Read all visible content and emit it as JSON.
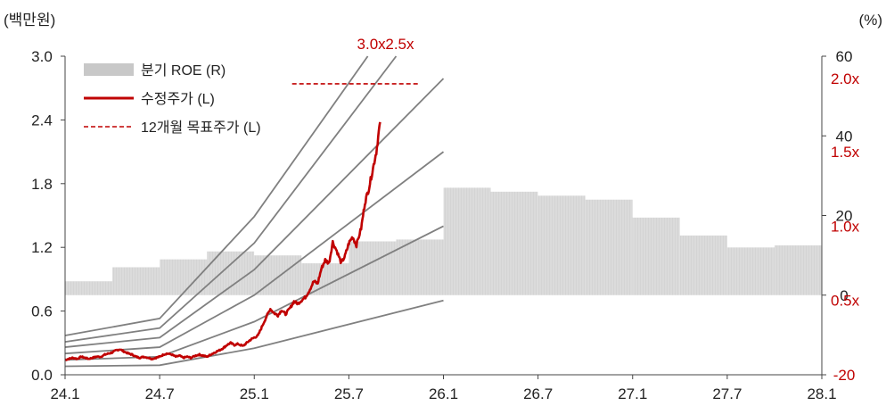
{
  "chart_data": {
    "type": "line",
    "title": "",
    "y_left": {
      "unit": "(백만원)",
      "range": [
        0,
        3.0
      ],
      "ticks": [
        "0.0",
        "0.6",
        "1.2",
        "1.8",
        "2.4",
        "3.0"
      ]
    },
    "y_right": {
      "unit": "(%)",
      "range": [
        -20,
        60
      ],
      "ticks": [
        "-20",
        "0",
        "20",
        "40",
        "60"
      ]
    },
    "x_axis": {
      "ticks": [
        "24.1",
        "24.7",
        "25.1",
        "25.7",
        "26.1",
        "26.7",
        "27.1",
        "27.7",
        "28.1"
      ]
    },
    "legend": {
      "placement": "top-left",
      "items": [
        {
          "key": "roe",
          "label": "분기 ROE (R)"
        },
        {
          "key": "price",
          "label": "수정주가 (L)"
        },
        {
          "key": "target",
          "label": "12개월 목표주가 (L)"
        }
      ]
    },
    "colors": {
      "roe": "#d4d4d4",
      "price": "#c00000",
      "target": "#c00000",
      "band": "#808080",
      "axis": "#444444"
    },
    "quarterly_roe": [
      {
        "start": 24.0,
        "end": 24.5,
        "value": 3.5
      },
      {
        "start": 24.5,
        "end": 25.0,
        "value": 7.0
      },
      {
        "start": 25.0,
        "end": 25.5,
        "value": 9.0
      },
      {
        "start": 25.5,
        "end": 26.0,
        "value": 11.0
      },
      {
        "start": 26.0,
        "end": 26.5,
        "value": 10.0
      },
      {
        "start": 26.5,
        "end": 27.0,
        "value": 8.0
      },
      {
        "start": 27.0,
        "end": 27.5,
        "value": 13.5
      },
      {
        "start": 27.5,
        "end": 28.0,
        "value": 14.0
      },
      {
        "start": 28.0,
        "end": 28.5,
        "value": 27.0
      },
      {
        "start": 28.5,
        "end": 29.0,
        "value": 26.0
      },
      {
        "start": 29.0,
        "end": 29.5,
        "value": 25.0
      },
      {
        "start": 29.5,
        "end": 30.0,
        "value": 24.0
      },
      {
        "start": 30.0,
        "end": 30.5,
        "value": 19.5
      },
      {
        "start": 30.5,
        "end": 31.0,
        "value": 15.0
      },
      {
        "start": 31.0,
        "end": 31.5,
        "value": 12.0
      },
      {
        "start": 31.5,
        "end": 32.0,
        "value": 12.5
      }
    ],
    "pbr_bands": [
      {
        "label": "0.5x",
        "points": [
          [
            24.0,
            0.08
          ],
          [
            25.0,
            0.09
          ],
          [
            26.0,
            0.25
          ],
          [
            28.0,
            0.7
          ]
        ]
      },
      {
        "label": "1.0x",
        "points": [
          [
            24.0,
            0.14
          ],
          [
            25.0,
            0.17
          ],
          [
            26.0,
            0.5
          ],
          [
            28.0,
            1.4
          ]
        ]
      },
      {
        "label": "1.5x",
        "points": [
          [
            24.0,
            0.2
          ],
          [
            25.0,
            0.26
          ],
          [
            26.0,
            0.75
          ],
          [
            28.0,
            2.1
          ]
        ]
      },
      {
        "label": "2.0x",
        "points": [
          [
            24.0,
            0.26
          ],
          [
            25.0,
            0.35
          ],
          [
            26.0,
            0.99
          ],
          [
            28.0,
            2.79
          ]
        ]
      },
      {
        "label": "2.5x",
        "points": [
          [
            24.0,
            0.31
          ],
          [
            25.0,
            0.44
          ],
          [
            26.0,
            1.24
          ],
          [
            27.5,
            3.0
          ]
        ]
      },
      {
        "label": "3.0x",
        "points": [
          [
            24.0,
            0.37
          ],
          [
            25.0,
            0.53
          ],
          [
            26.0,
            1.49
          ],
          [
            27.2,
            3.0
          ]
        ]
      }
    ],
    "target_price": {
      "x_range": [
        26.4,
        27.75
      ],
      "value": 2.74
    },
    "price_series": [
      [
        24.0,
        0.14
      ],
      [
        24.04,
        0.15
      ],
      [
        24.08,
        0.16
      ],
      [
        24.13,
        0.15
      ],
      [
        24.17,
        0.17
      ],
      [
        24.21,
        0.16
      ],
      [
        24.25,
        0.15
      ],
      [
        24.29,
        0.16
      ],
      [
        24.33,
        0.17
      ],
      [
        24.38,
        0.17
      ],
      [
        24.42,
        0.19
      ],
      [
        24.46,
        0.2
      ],
      [
        24.5,
        0.21
      ],
      [
        24.54,
        0.23
      ],
      [
        24.58,
        0.24
      ],
      [
        24.62,
        0.22
      ],
      [
        24.67,
        0.2
      ],
      [
        24.71,
        0.19
      ],
      [
        24.75,
        0.17
      ],
      [
        24.79,
        0.16
      ],
      [
        24.83,
        0.17
      ],
      [
        24.88,
        0.16
      ],
      [
        24.92,
        0.15
      ],
      [
        24.96,
        0.16
      ],
      [
        25.0,
        0.17
      ],
      [
        25.04,
        0.19
      ],
      [
        25.08,
        0.2
      ],
      [
        25.13,
        0.19
      ],
      [
        25.17,
        0.17
      ],
      [
        25.21,
        0.18
      ],
      [
        25.25,
        0.16
      ],
      [
        25.29,
        0.17
      ],
      [
        25.33,
        0.16
      ],
      [
        25.38,
        0.18
      ],
      [
        25.42,
        0.19
      ],
      [
        25.46,
        0.18
      ],
      [
        25.5,
        0.17
      ],
      [
        25.54,
        0.19
      ],
      [
        25.58,
        0.21
      ],
      [
        25.63,
        0.23
      ],
      [
        25.67,
        0.25
      ],
      [
        25.71,
        0.28
      ],
      [
        25.75,
        0.3
      ],
      [
        25.79,
        0.28
      ],
      [
        25.83,
        0.29
      ],
      [
        25.88,
        0.27
      ],
      [
        25.92,
        0.3
      ],
      [
        25.96,
        0.33
      ],
      [
        26.0,
        0.35
      ],
      [
        26.04,
        0.37
      ],
      [
        26.08,
        0.45
      ],
      [
        26.13,
        0.55
      ],
      [
        26.17,
        0.62
      ],
      [
        26.21,
        0.58
      ],
      [
        26.25,
        0.56
      ],
      [
        26.29,
        0.61
      ],
      [
        26.33,
        0.57
      ],
      [
        26.38,
        0.63
      ],
      [
        26.42,
        0.69
      ],
      [
        26.46,
        0.67
      ],
      [
        26.5,
        0.7
      ],
      [
        26.54,
        0.73
      ],
      [
        26.58,
        0.79
      ],
      [
        26.63,
        0.88
      ],
      [
        26.67,
        0.86
      ],
      [
        26.71,
        1.0
      ],
      [
        26.75,
        1.08
      ],
      [
        26.79,
        1.05
      ],
      [
        26.83,
        1.25
      ],
      [
        26.88,
        1.15
      ],
      [
        26.92,
        1.05
      ],
      [
        26.96,
        1.12
      ],
      [
        27.0,
        1.24
      ],
      [
        27.04,
        1.3
      ],
      [
        27.08,
        1.22
      ],
      [
        27.13,
        1.38
      ],
      [
        27.17,
        1.62
      ],
      [
        27.21,
        1.75
      ],
      [
        27.25,
        1.92
      ],
      [
        27.29,
        2.1
      ],
      [
        27.33,
        2.38
      ]
    ]
  }
}
